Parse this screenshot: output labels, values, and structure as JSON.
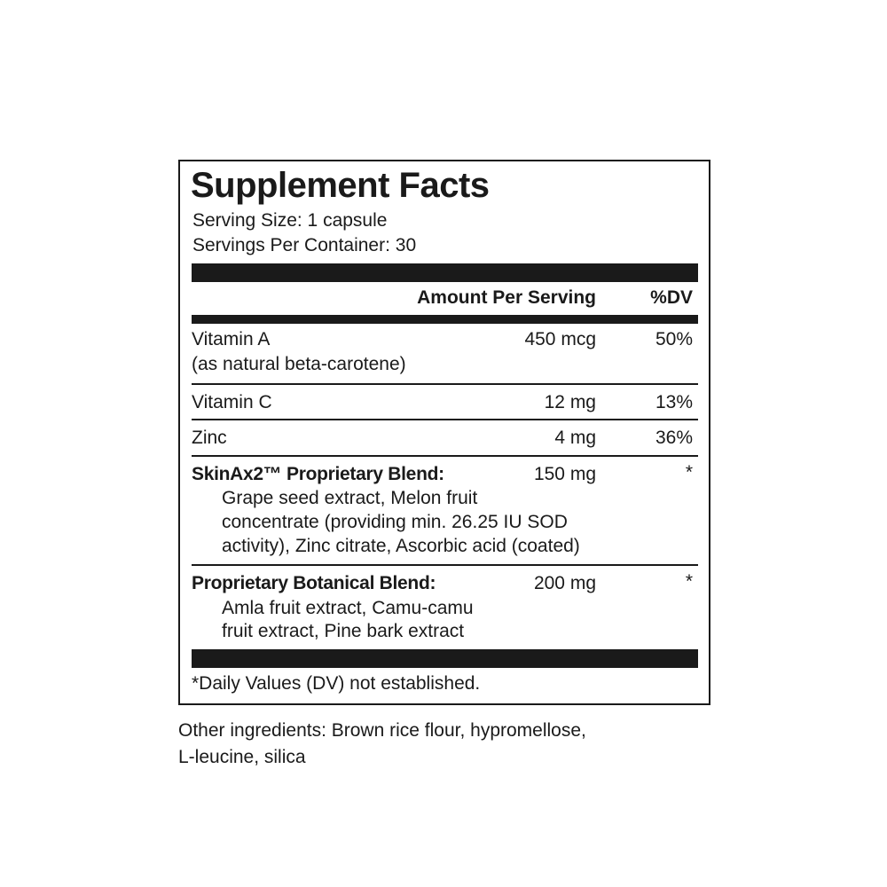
{
  "title": "Supplement Facts",
  "serving_size": "Serving Size: 1 capsule",
  "servings_per_container": "Servings Per Container: 30",
  "header": {
    "amount": "Amount Per Serving",
    "dv": "%DV"
  },
  "rows": [
    {
      "name": "Vitamin A",
      "sub": "(as natural beta-carotene)",
      "amount": "450 mcg",
      "dv": "50%"
    },
    {
      "name": "Vitamin C",
      "amount": "12 mg",
      "dv": "13%"
    },
    {
      "name": "Zinc",
      "amount": "4 mg",
      "dv": "36%"
    }
  ],
  "blends": [
    {
      "name": "SkinAx2™ Proprietary Blend:",
      "amount": "150 mg",
      "dv": "*",
      "lines": [
        "Grape seed extract, Melon fruit",
        "concentrate (providing min. 26.25 IU SOD",
        "activity), Zinc citrate, Ascorbic acid (coated)"
      ]
    },
    {
      "name": "Proprietary Botanical Blend:",
      "amount": "200 mg",
      "dv": "*",
      "lines": [
        "Amla fruit extract, Camu-camu",
        "fruit extract, Pine bark extract"
      ]
    }
  ],
  "footnote": "*Daily Values (DV) not established.",
  "other_ingredients": [
    "Other ingredients: Brown rice flour, hypromellose,",
    "L-leucine, silica"
  ]
}
